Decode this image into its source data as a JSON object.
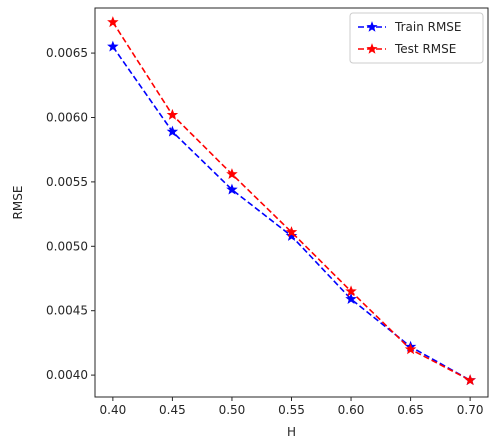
{
  "chart_data": {
    "type": "line",
    "title": "",
    "xlabel": "H",
    "ylabel": "RMSE",
    "x": [
      0.4,
      0.45,
      0.5,
      0.55,
      0.6,
      0.65,
      0.7
    ],
    "xlim": [
      0.385,
      0.715
    ],
    "ylim": [
      0.00383,
      0.00685
    ],
    "xticks": [
      0.4,
      0.45,
      0.5,
      0.55,
      0.6,
      0.65,
      0.7
    ],
    "xtick_labels": [
      "0.40",
      "0.45",
      "0.50",
      "0.55",
      "0.60",
      "0.65",
      "0.70"
    ],
    "yticks": [
      0.004,
      0.0045,
      0.005,
      0.0055,
      0.006,
      0.0065
    ],
    "ytick_labels": [
      "0.0040",
      "0.0045",
      "0.0050",
      "0.0055",
      "0.0060",
      "0.0065"
    ],
    "grid": false,
    "legend_position": "top-right",
    "series": [
      {
        "name": "Train RMSE",
        "color": "#0000ff",
        "line_style": "dashed",
        "marker": "star",
        "values": [
          0.00655,
          0.00589,
          0.00544,
          0.00508,
          0.00459,
          0.00422,
          0.00396
        ]
      },
      {
        "name": "Test RMSE",
        "color": "#ff0000",
        "line_style": "dashed",
        "marker": "star",
        "values": [
          0.00674,
          0.00602,
          0.00556,
          0.00511,
          0.00465,
          0.0042,
          0.00396
        ]
      }
    ]
  }
}
